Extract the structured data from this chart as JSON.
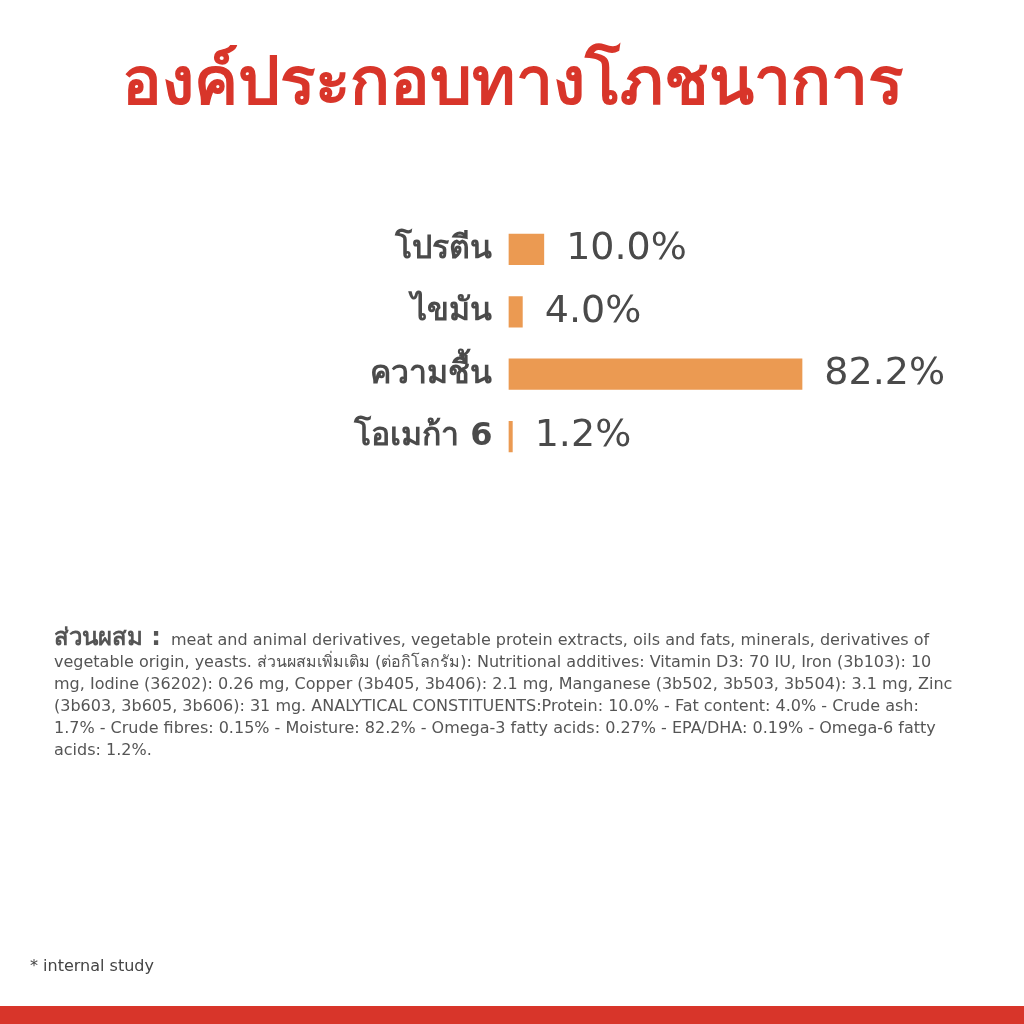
{
  "chart_data": {
    "type": "bar",
    "orientation": "horizontal",
    "title": "องค์ประกอบทางโภชนาการ",
    "categories": [
      "โปรตีน",
      "ไขมัน",
      "ความชื้น",
      "โอเมก้า 6"
    ],
    "values": [
      10.0,
      4.0,
      82.2,
      1.2
    ],
    "value_labels": [
      "10.0%",
      "4.0%",
      "82.2%",
      "1.2%"
    ],
    "color": "#eb9a52",
    "tick_labels": "y",
    "legend": false,
    "annotations": [
      "ส่วนผสม :",
      "meat and animal derivatives, vegetable protein extracts, oils and fats, minerals, derivatives of vegetable origin, yeasts. ส่วนผสมเพิ่มเติม (ต่อกิโลกรัม): Nutritional additives: Vitamin D3: 70 IU, Iron (3b103): 10 mg, Iodine (36202): 0.26 mg, Copper (3b405, 3b406): 2.1 mg, Manganese (3b502, 3b503, 3b504): 3.1 mg, Zinc (3b603, 3b605, 3b606): 31 mg. ANALYTICAL CONSTITUENTS:Protein: 10.0% - Fat content: 4.0% - Crude ash: 1.7% - Crude fibres: 0.15% - Moisture: 82.2% - Omega-3 fatty acids: 0.27% - EPA/DHA: 0.19% - Omega-6 fatty acids: 1.2%.",
      "* internal study"
    ]
  }
}
